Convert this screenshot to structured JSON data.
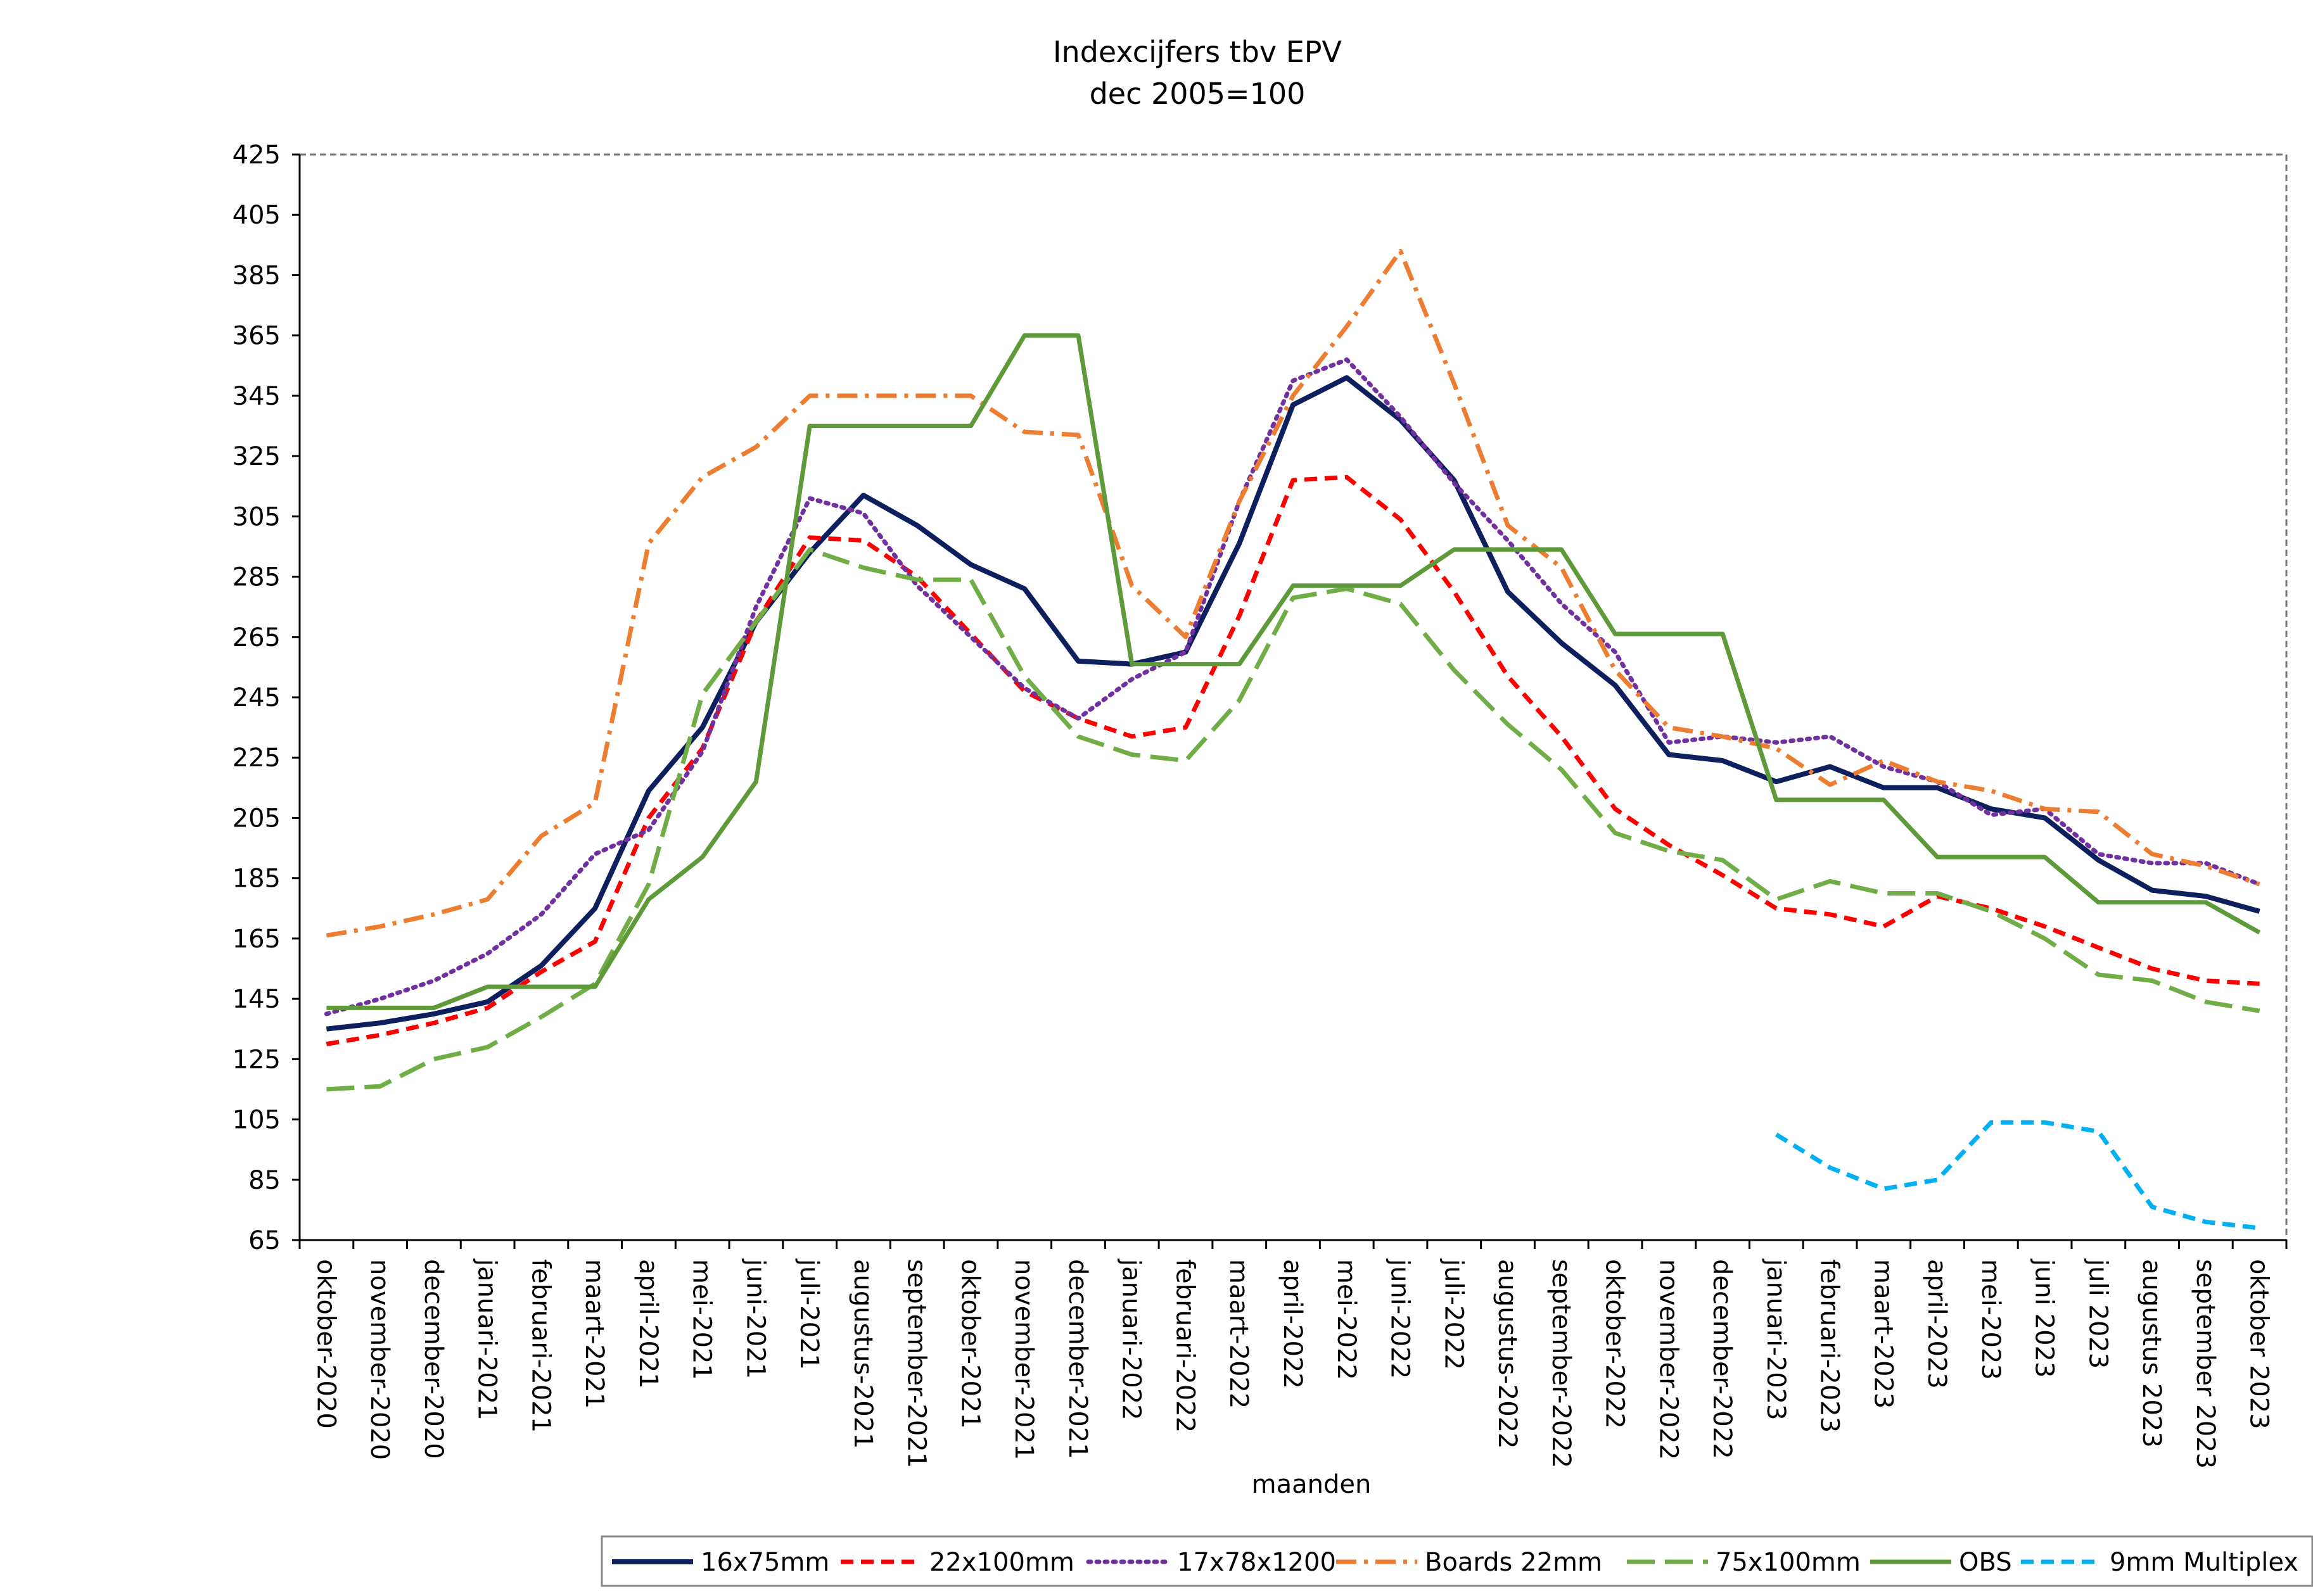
{
  "chart_data": {
    "type": "line",
    "title": "Indexcijfers tbv EPV",
    "subtitle": "dec 2005=100",
    "x_label": "maanden",
    "categories": [
      "oktober-2020",
      "november-2020",
      "december-2020",
      "januari-2021",
      "februari-2021",
      "maart-2021",
      "april-2021",
      "mei-2021",
      "juni-2021",
      "juli-2021",
      "augustus-2021",
      "september-2021",
      "oktober-2021",
      "november-2021",
      "december-2021",
      "januari-2022",
      "februari-2022",
      "maart-2022",
      "april-2022",
      "mei-2022",
      "juni-2022",
      "juli-2022",
      "augustus-2022",
      "september-2022",
      "oktober-2022",
      "november-2022",
      "december-2022",
      "januari-2023",
      "februari-2023",
      "maart-2023",
      "april-2023",
      "mei-2023",
      "juni 2023",
      "juli 2023",
      "augustus 2023",
      "september 2023",
      "oktober 2023"
    ],
    "series": [
      {
        "name": "16x75mm",
        "color": "#0d1f5c",
        "dash": "solid",
        "values": [
          135,
          137,
          140,
          144,
          156,
          175,
          214,
          235,
          270,
          293,
          312,
          302,
          289,
          281,
          257,
          256,
          260,
          296,
          342,
          351,
          337,
          317,
          280,
          263,
          249,
          226,
          224,
          217,
          222,
          215,
          215,
          208,
          205,
          191,
          181,
          179,
          174
        ]
      },
      {
        "name": "22x100mm",
        "color": "#ff0000",
        "dash": "dash",
        "values": [
          130,
          133,
          137,
          142,
          154,
          164,
          205,
          228,
          270,
          298,
          297,
          285,
          266,
          247,
          238,
          232,
          235,
          272,
          317,
          318,
          304,
          280,
          252,
          232,
          208,
          196,
          186,
          175,
          173,
          169,
          179,
          175,
          169,
          162,
          155,
          151,
          150
        ]
      },
      {
        "name": "17x78x1200",
        "color": "#7030a0",
        "dash": "dot",
        "values": [
          140,
          145,
          151,
          160,
          173,
          193,
          201,
          227,
          275,
          311,
          306,
          282,
          265,
          248,
          238,
          251,
          260,
          310,
          350,
          357,
          338,
          316,
          297,
          276,
          260,
          230,
          232,
          230,
          232,
          222,
          217,
          206,
          208,
          193,
          190,
          190,
          183
        ]
      },
      {
        "name": "Boards 22mm",
        "color": "#ed7d31",
        "dash": "dashdot",
        "values": [
          166,
          169,
          173,
          178,
          199,
          210,
          296,
          318,
          328,
          345,
          345,
          345,
          345,
          333,
          332,
          282,
          265,
          310,
          345,
          368,
          393,
          349,
          302,
          288,
          254,
          235,
          232,
          228,
          216,
          224,
          217,
          214,
          208,
          207,
          193,
          189,
          183
        ]
      },
      {
        "name": "75x100mm",
        "color": "#70ad47",
        "dash": "longdash",
        "values": [
          115,
          116,
          125,
          129,
          139,
          150,
          183,
          246,
          270,
          294,
          288,
          284,
          284,
          252,
          232,
          226,
          224,
          244,
          278,
          281,
          276,
          254,
          236,
          221,
          200,
          194,
          191,
          178,
          184,
          180,
          180,
          174,
          165,
          153,
          151,
          144,
          141
        ]
      },
      {
        "name": "OBS",
        "color": "#5e9a3a",
        "dash": "solid",
        "values": [
          142,
          142,
          142,
          149,
          149,
          149,
          178,
          192,
          217,
          335,
          335,
          335,
          335,
          365,
          365,
          256,
          256,
          256,
          282,
          282,
          282,
          294,
          294,
          294,
          266,
          266,
          266,
          211,
          211,
          211,
          192,
          192,
          192,
          177,
          177,
          177,
          167
        ]
      },
      {
        "name": "9mm Multiplex",
        "color": "#00b0f0",
        "dash": "dash",
        "values": [
          null,
          null,
          null,
          null,
          null,
          null,
          null,
          null,
          null,
          null,
          null,
          null,
          null,
          null,
          null,
          null,
          null,
          null,
          null,
          null,
          null,
          null,
          null,
          null,
          null,
          null,
          null,
          100,
          89,
          82,
          85,
          104,
          104,
          101,
          76,
          71,
          69
        ]
      }
    ],
    "ylim": [
      65,
      425
    ],
    "yticks": [
      65,
      85,
      105,
      125,
      145,
      165,
      185,
      205,
      225,
      245,
      265,
      285,
      305,
      325,
      345,
      365,
      385,
      405,
      425
    ],
    "grid": false,
    "legend": "bottom"
  }
}
